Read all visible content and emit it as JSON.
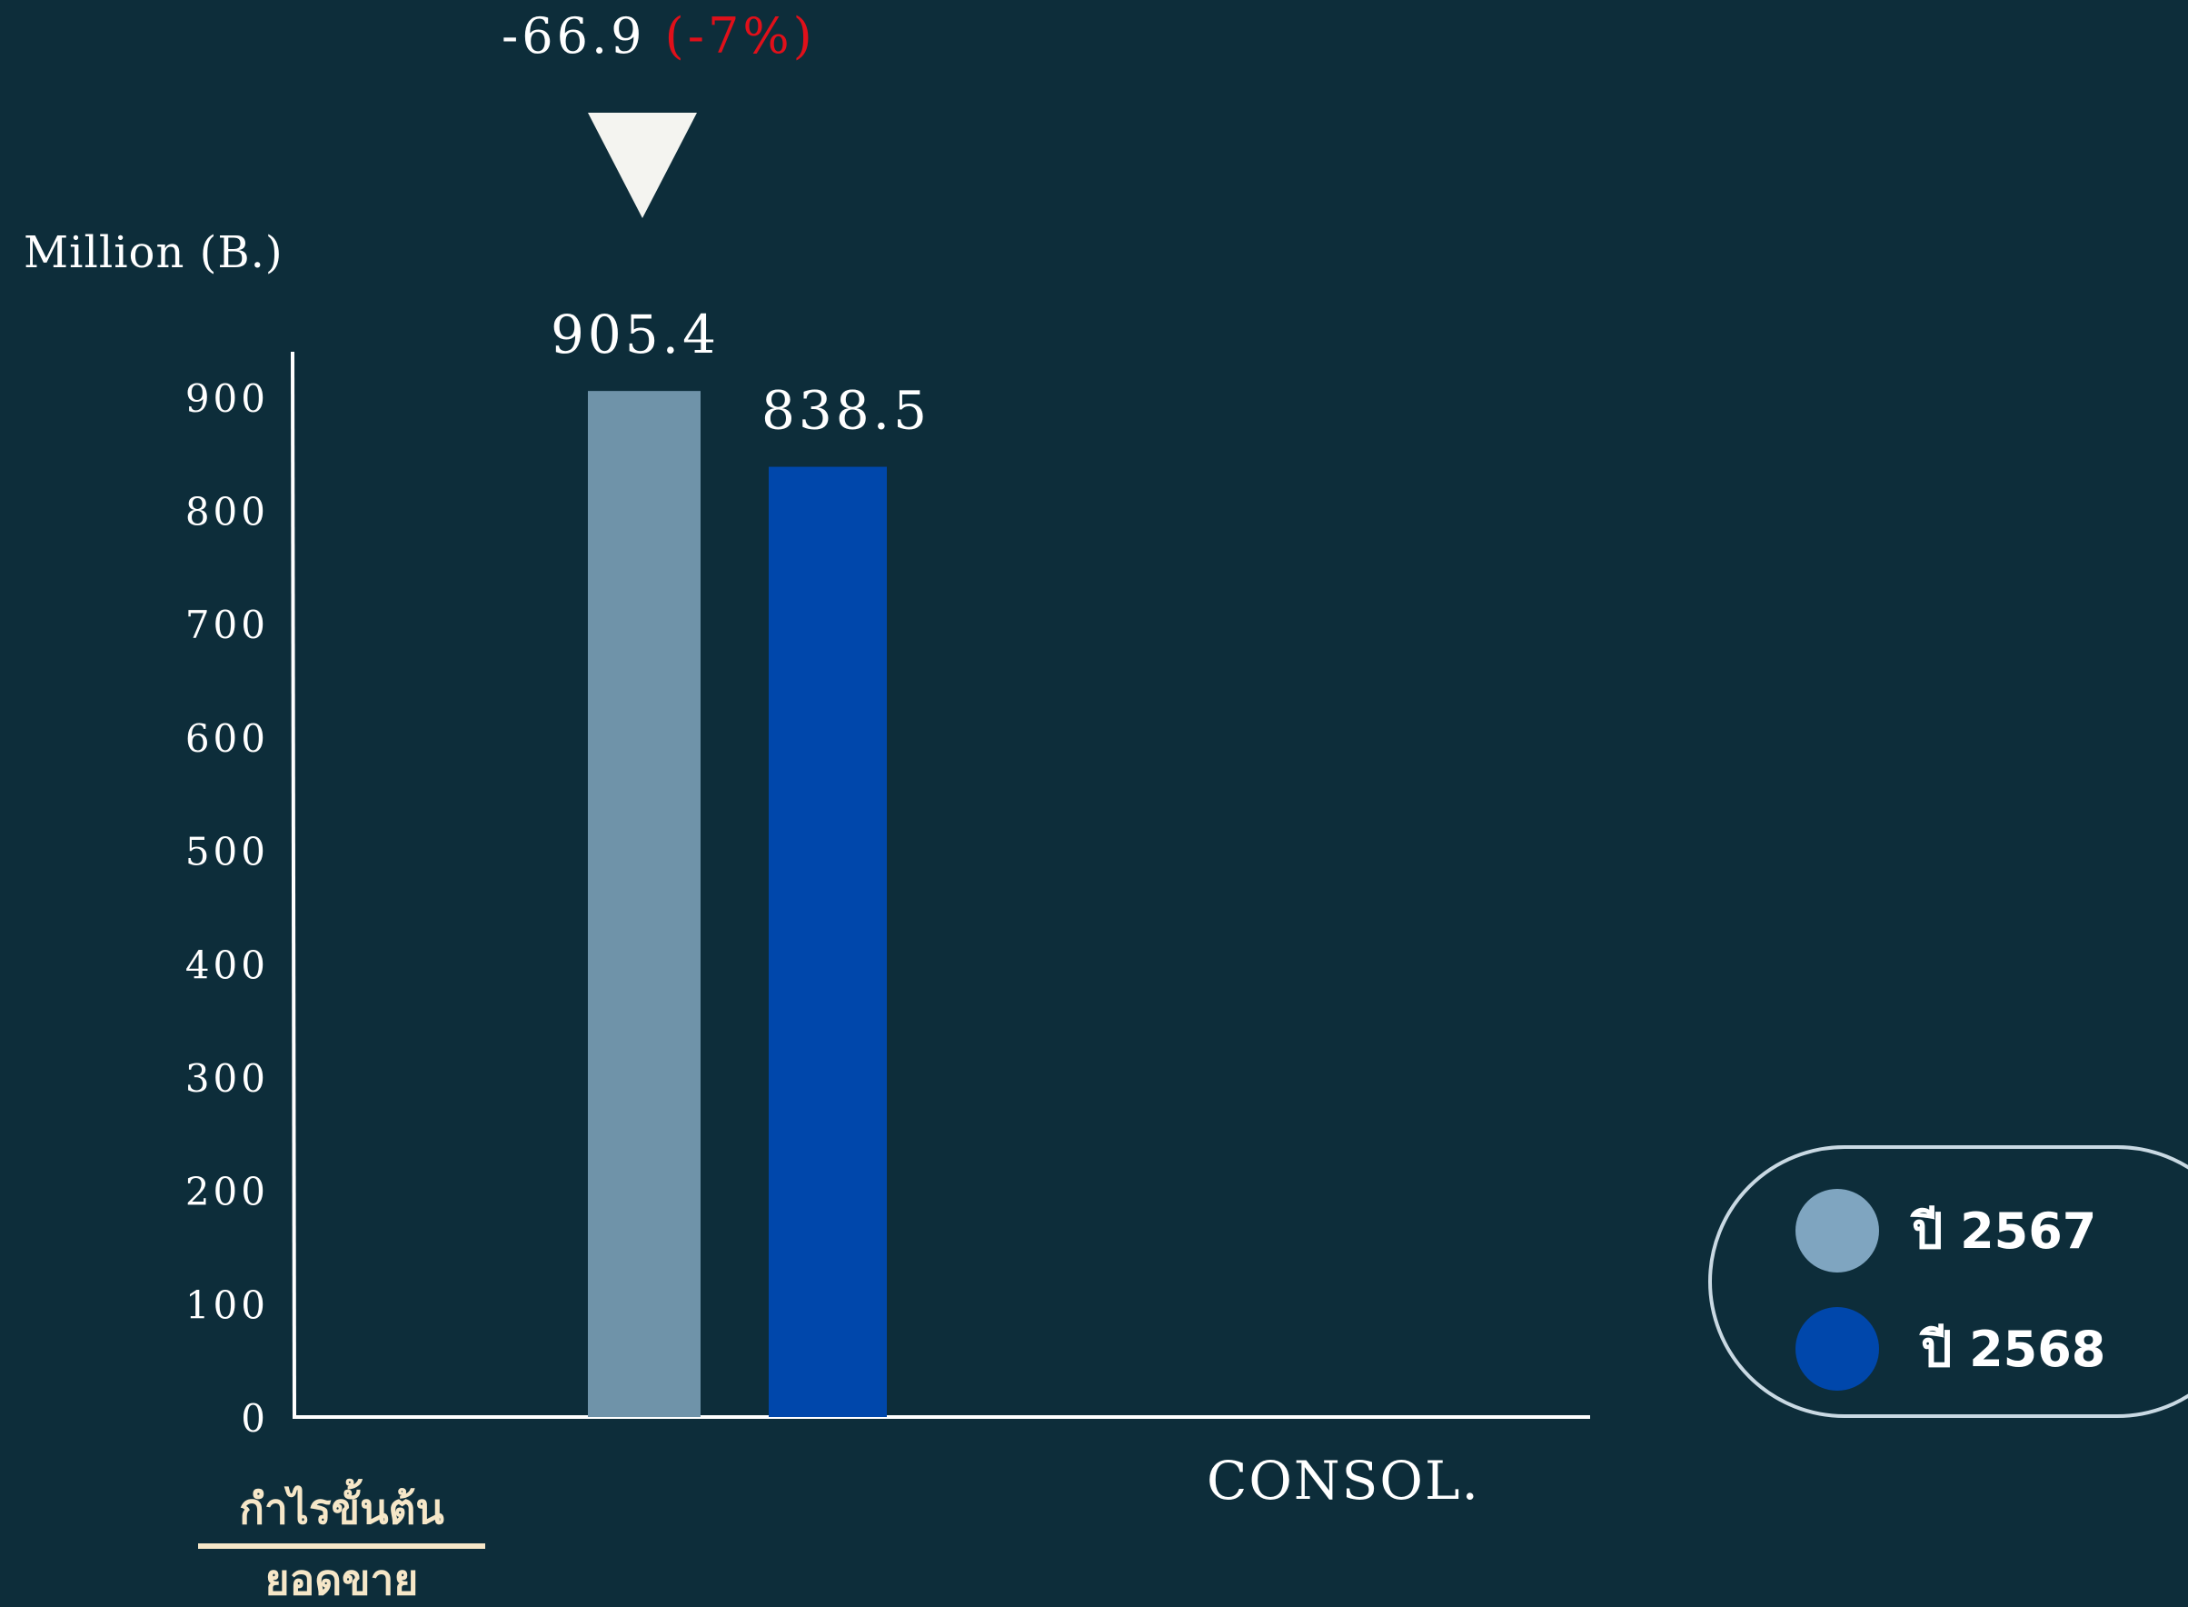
{
  "chart_data": {
    "type": "bar",
    "categories": [
      "CONSOL."
    ],
    "series": [
      {
        "name": "ปี 2567",
        "values": [
          905.4
        ],
        "color": "#6f93a9"
      },
      {
        "name": "ปี 2568",
        "values": [
          838.5
        ],
        "color": "#0047ab"
      }
    ],
    "data_labels": [
      "905.4",
      "838.5"
    ],
    "ylabel": "Million (B.)",
    "yticks": [
      0,
      100,
      200,
      300,
      400,
      500,
      600,
      700,
      800,
      900
    ],
    "ylim": [
      0,
      940
    ],
    "grid": false,
    "legend_position": "bottom-right",
    "annotations": {
      "change_value": "-66.9",
      "change_percent": "(-7%)",
      "change_direction": "down-triangle-icon",
      "change_percent_color": "#e0101a"
    },
    "ratio_label": {
      "numerator": "กำไรขั้นต้น",
      "denominator": "ยอดขาย"
    }
  },
  "legend": {
    "items": [
      {
        "label": "ปี 2567",
        "color": "#7fa5c0"
      },
      {
        "label": "ปี 2568",
        "color": "#0047ab"
      }
    ]
  },
  "colors": {
    "background": "#0d2d3a",
    "axis": "#ffffff",
    "ratio_text": "#f6e7c8"
  }
}
